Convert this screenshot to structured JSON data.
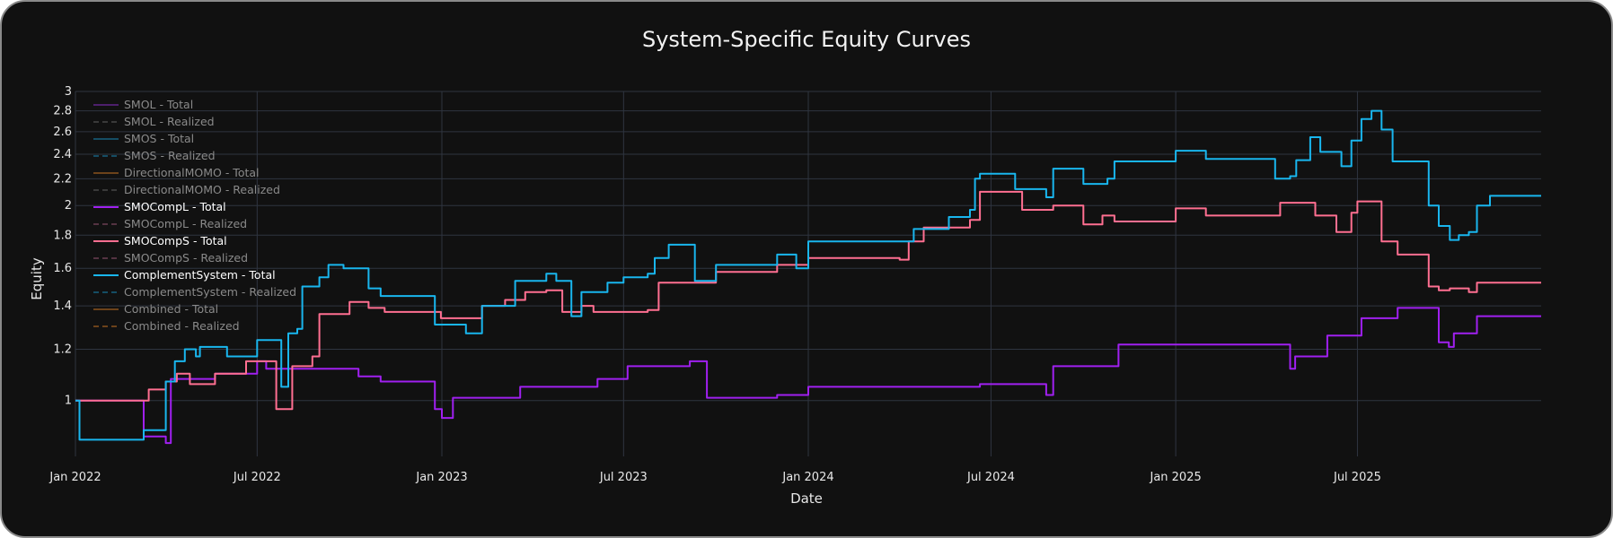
{
  "chart_data": {
    "type": "line",
    "title": "System-Specific Equity Curves",
    "xlabel": "Date",
    "ylabel": "Equity",
    "y_scale": "log",
    "ylim": [
      0.82,
      3.0
    ],
    "xlim": [
      "2022-01-01",
      "2025-12-31"
    ],
    "x_ticks": [
      {
        "date": "2022-01-01",
        "label": "Jan 2022"
      },
      {
        "date": "2022-07-01",
        "label": "Jul 2022"
      },
      {
        "date": "2023-01-01",
        "label": "Jan 2023"
      },
      {
        "date": "2023-07-01",
        "label": "Jul 2023"
      },
      {
        "date": "2024-01-01",
        "label": "Jan 2024"
      },
      {
        "date": "2024-07-01",
        "label": "Jul 2024"
      },
      {
        "date": "2025-01-01",
        "label": "Jan 2025"
      },
      {
        "date": "2025-07-01",
        "label": "Jul 2025"
      }
    ],
    "y_ticks": [
      1,
      1.2,
      1.4,
      1.6,
      1.8,
      2,
      2.2,
      2.4,
      2.6,
      2.8,
      3
    ],
    "grid": true,
    "legend_position": "top-left",
    "background_color": "#111111",
    "series": [
      {
        "name": "SMOL - Total",
        "color": "#7e2bb8",
        "dash": "solid",
        "visible": false,
        "points": []
      },
      {
        "name": "SMOL - Realized",
        "color": "#5a5a5a",
        "dash": "dash",
        "visible": false,
        "points": []
      },
      {
        "name": "SMOS - Total",
        "color": "#1a7fa8",
        "dash": "solid",
        "visible": false,
        "points": []
      },
      {
        "name": "SMOS - Realized",
        "color": "#1a7fa8",
        "dash": "dash",
        "visible": false,
        "points": []
      },
      {
        "name": "DirectionalMOMO - Total",
        "color": "#b86a22",
        "dash": "solid",
        "visible": false,
        "points": []
      },
      {
        "name": "DirectionalMOMO - Realized",
        "color": "#5a5a5a",
        "dash": "dash",
        "visible": false,
        "points": []
      },
      {
        "name": "SMOCompL - Total",
        "color": "#a020f0",
        "dash": "solid",
        "visible": true,
        "points": [
          [
            "2022-01-01",
            1.0
          ],
          [
            "2022-03-01",
            1.0
          ],
          [
            "2022-03-10",
            0.88
          ],
          [
            "2022-04-01",
            0.86
          ],
          [
            "2022-04-06",
            1.08
          ],
          [
            "2022-05-15",
            1.08
          ],
          [
            "2022-05-20",
            1.1
          ],
          [
            "2022-06-25",
            1.1
          ],
          [
            "2022-07-01",
            1.15
          ],
          [
            "2022-07-10",
            1.12
          ],
          [
            "2022-10-01",
            1.12
          ],
          [
            "2022-10-10",
            1.09
          ],
          [
            "2022-11-01",
            1.07
          ],
          [
            "2022-12-20",
            1.07
          ],
          [
            "2022-12-25",
            0.97
          ],
          [
            "2023-01-01",
            0.94
          ],
          [
            "2023-01-12",
            1.01
          ],
          [
            "2023-03-10",
            1.01
          ],
          [
            "2023-03-20",
            1.05
          ],
          [
            "2023-05-20",
            1.05
          ],
          [
            "2023-06-05",
            1.08
          ],
          [
            "2023-06-25",
            1.08
          ],
          [
            "2023-07-05",
            1.13
          ],
          [
            "2023-08-25",
            1.13
          ],
          [
            "2023-09-05",
            1.15
          ],
          [
            "2023-09-15",
            1.15
          ],
          [
            "2023-09-22",
            1.01
          ],
          [
            "2023-12-01",
            1.02
          ],
          [
            "2024-01-01",
            1.05
          ],
          [
            "2024-04-01",
            1.05
          ],
          [
            "2024-06-20",
            1.06
          ],
          [
            "2024-08-20",
            1.06
          ],
          [
            "2024-08-25",
            1.02
          ],
          [
            "2024-09-01",
            1.13
          ],
          [
            "2024-10-20",
            1.13
          ],
          [
            "2024-11-05",
            1.22
          ],
          [
            "2025-04-15",
            1.22
          ],
          [
            "2025-04-25",
            1.12
          ],
          [
            "2025-04-30",
            1.17
          ],
          [
            "2025-05-25",
            1.17
          ],
          [
            "2025-06-01",
            1.26
          ],
          [
            "2025-06-30",
            1.26
          ],
          [
            "2025-07-05",
            1.34
          ],
          [
            "2025-08-05",
            1.34
          ],
          [
            "2025-08-10",
            1.39
          ],
          [
            "2025-09-12",
            1.39
          ],
          [
            "2025-09-20",
            1.23
          ],
          [
            "2025-09-30",
            1.21
          ],
          [
            "2025-10-05",
            1.27
          ],
          [
            "2025-10-20",
            1.27
          ],
          [
            "2025-10-28",
            1.35
          ],
          [
            "2025-12-31",
            1.35
          ]
        ]
      },
      {
        "name": "SMOCompL - Realized",
        "color": "#8c4f6a",
        "dash": "dash",
        "visible": false,
        "points": []
      },
      {
        "name": "SMOCompS - Total",
        "color": "#ff6f91",
        "dash": "solid",
        "visible": true,
        "points": [
          [
            "2022-01-01",
            1.0
          ],
          [
            "2022-03-05",
            1.0
          ],
          [
            "2022-03-15",
            1.04
          ],
          [
            "2022-04-01",
            1.07
          ],
          [
            "2022-04-12",
            1.1
          ],
          [
            "2022-04-25",
            1.06
          ],
          [
            "2022-05-20",
            1.1
          ],
          [
            "2022-06-15",
            1.1
          ],
          [
            "2022-06-20",
            1.15
          ],
          [
            "2022-07-15",
            1.15
          ],
          [
            "2022-07-20",
            0.97
          ],
          [
            "2022-08-05",
            1.13
          ],
          [
            "2022-08-25",
            1.17
          ],
          [
            "2022-09-01",
            1.36
          ],
          [
            "2022-09-25",
            1.36
          ],
          [
            "2022-10-01",
            1.42
          ],
          [
            "2022-10-20",
            1.39
          ],
          [
            "2022-11-05",
            1.37
          ],
          [
            "2022-12-25",
            1.37
          ],
          [
            "2022-12-31",
            1.34
          ],
          [
            "2023-01-31",
            1.34
          ],
          [
            "2023-02-10",
            1.4
          ],
          [
            "2023-03-05",
            1.43
          ],
          [
            "2023-03-25",
            1.47
          ],
          [
            "2023-04-15",
            1.48
          ],
          [
            "2023-05-01",
            1.37
          ],
          [
            "2023-05-20",
            1.4
          ],
          [
            "2023-06-01",
            1.37
          ],
          [
            "2023-07-15",
            1.37
          ],
          [
            "2023-07-25",
            1.38
          ],
          [
            "2023-08-05",
            1.52
          ],
          [
            "2023-09-25",
            1.52
          ],
          [
            "2023-10-01",
            1.58
          ],
          [
            "2023-11-20",
            1.58
          ],
          [
            "2023-12-01",
            1.62
          ],
          [
            "2024-01-01",
            1.66
          ],
          [
            "2024-02-15",
            1.66
          ],
          [
            "2024-04-01",
            1.65
          ],
          [
            "2024-04-10",
            1.76
          ],
          [
            "2024-04-25",
            1.85
          ],
          [
            "2024-06-01",
            1.85
          ],
          [
            "2024-06-10",
            1.9
          ],
          [
            "2024-06-20",
            2.1
          ],
          [
            "2024-07-10",
            2.1
          ],
          [
            "2024-07-25",
            2.1
          ],
          [
            "2024-08-01",
            1.97
          ],
          [
            "2024-09-01",
            2.0
          ],
          [
            "2024-10-01",
            1.87
          ],
          [
            "2024-10-20",
            1.93
          ],
          [
            "2024-11-01",
            1.89
          ],
          [
            "2024-12-25",
            1.89
          ],
          [
            "2025-01-01",
            1.98
          ],
          [
            "2025-01-31",
            1.93
          ],
          [
            "2025-04-01",
            1.93
          ],
          [
            "2025-04-15",
            2.02
          ],
          [
            "2025-05-20",
            1.93
          ],
          [
            "2025-06-10",
            1.82
          ],
          [
            "2025-06-25",
            1.95
          ],
          [
            "2025-07-01",
            2.03
          ],
          [
            "2025-07-20",
            2.03
          ],
          [
            "2025-07-25",
            1.76
          ],
          [
            "2025-08-10",
            1.68
          ],
          [
            "2025-09-01",
            1.68
          ],
          [
            "2025-09-10",
            1.5
          ],
          [
            "2025-09-20",
            1.48
          ],
          [
            "2025-10-01",
            1.49
          ],
          [
            "2025-10-20",
            1.47
          ],
          [
            "2025-10-28",
            1.52
          ],
          [
            "2025-12-31",
            1.52
          ]
        ]
      },
      {
        "name": "SMOCompS - Realized",
        "color": "#8c4f6a",
        "dash": "dash",
        "visible": false,
        "points": []
      },
      {
        "name": "ComplementSystem - Total",
        "color": "#19b6ee",
        "dash": "solid",
        "visible": true,
        "points": [
          [
            "2022-01-01",
            1.0
          ],
          [
            "2022-01-05",
            0.87
          ],
          [
            "2022-03-01",
            0.87
          ],
          [
            "2022-03-10",
            0.9
          ],
          [
            "2022-03-25",
            0.9
          ],
          [
            "2022-04-01",
            1.07
          ],
          [
            "2022-04-10",
            1.15
          ],
          [
            "2022-04-20",
            1.2
          ],
          [
            "2022-05-01",
            1.17
          ],
          [
            "2022-05-05",
            1.21
          ],
          [
            "2022-05-25",
            1.21
          ],
          [
            "2022-06-01",
            1.17
          ],
          [
            "2022-06-25",
            1.17
          ],
          [
            "2022-07-01",
            1.24
          ],
          [
            "2022-07-20",
            1.24
          ],
          [
            "2022-07-25",
            1.05
          ],
          [
            "2022-08-01",
            1.27
          ],
          [
            "2022-08-10",
            1.29
          ],
          [
            "2022-08-15",
            1.5
          ],
          [
            "2022-09-01",
            1.55
          ],
          [
            "2022-09-10",
            1.62
          ],
          [
            "2022-09-25",
            1.6
          ],
          [
            "2022-10-20",
            1.49
          ],
          [
            "2022-11-01",
            1.45
          ],
          [
            "2022-12-20",
            1.45
          ],
          [
            "2022-12-25",
            1.31
          ],
          [
            "2023-01-20",
            1.31
          ],
          [
            "2023-01-25",
            1.27
          ],
          [
            "2023-02-10",
            1.4
          ],
          [
            "2023-03-15",
            1.53
          ],
          [
            "2023-04-15",
            1.57
          ],
          [
            "2023-04-25",
            1.53
          ],
          [
            "2023-05-10",
            1.35
          ],
          [
            "2023-05-20",
            1.47
          ],
          [
            "2023-06-10",
            1.47
          ],
          [
            "2023-06-15",
            1.52
          ],
          [
            "2023-07-01",
            1.55
          ],
          [
            "2023-07-25",
            1.57
          ],
          [
            "2023-08-01",
            1.66
          ],
          [
            "2023-08-15",
            1.74
          ],
          [
            "2023-09-01",
            1.74
          ],
          [
            "2023-09-10",
            1.53
          ],
          [
            "2023-09-25",
            1.53
          ],
          [
            "2023-10-01",
            1.62
          ],
          [
            "2023-11-20",
            1.62
          ],
          [
            "2023-12-01",
            1.68
          ],
          [
            "2023-12-20",
            1.6
          ],
          [
            "2024-01-01",
            1.76
          ],
          [
            "2024-04-01",
            1.76
          ],
          [
            "2024-04-15",
            1.84
          ],
          [
            "2024-05-20",
            1.92
          ],
          [
            "2024-06-10",
            1.97
          ],
          [
            "2024-06-15",
            2.2
          ],
          [
            "2024-06-20",
            2.24
          ],
          [
            "2024-07-20",
            2.24
          ],
          [
            "2024-07-25",
            2.12
          ],
          [
            "2024-08-20",
            2.12
          ],
          [
            "2024-08-25",
            2.06
          ],
          [
            "2024-09-01",
            2.28
          ],
          [
            "2024-10-01",
            2.16
          ],
          [
            "2024-10-25",
            2.2
          ],
          [
            "2024-11-01",
            2.34
          ],
          [
            "2024-12-20",
            2.34
          ],
          [
            "2025-01-01",
            2.43
          ],
          [
            "2025-01-31",
            2.36
          ],
          [
            "2025-04-01",
            2.36
          ],
          [
            "2025-04-10",
            2.2
          ],
          [
            "2025-04-25",
            2.22
          ],
          [
            "2025-05-01",
            2.35
          ],
          [
            "2025-05-15",
            2.55
          ],
          [
            "2025-05-25",
            2.42
          ],
          [
            "2025-06-15",
            2.3
          ],
          [
            "2025-06-25",
            2.52
          ],
          [
            "2025-07-05",
            2.72
          ],
          [
            "2025-07-15",
            2.8
          ],
          [
            "2025-07-25",
            2.62
          ],
          [
            "2025-08-05",
            2.34
          ],
          [
            "2025-09-01",
            2.34
          ],
          [
            "2025-09-10",
            2.0
          ],
          [
            "2025-09-20",
            1.86
          ],
          [
            "2025-10-01",
            1.77
          ],
          [
            "2025-10-10",
            1.8
          ],
          [
            "2025-10-20",
            1.82
          ],
          [
            "2025-10-28",
            2.0
          ],
          [
            "2025-11-10",
            2.07
          ],
          [
            "2025-12-31",
            2.07
          ]
        ]
      },
      {
        "name": "ComplementSystem - Realized",
        "color": "#1a7fa8",
        "dash": "dash",
        "visible": false,
        "points": []
      },
      {
        "name": "Combined - Total",
        "color": "#b86a22",
        "dash": "solid",
        "visible": false,
        "points": []
      },
      {
        "name": "Combined - Realized",
        "color": "#b86a22",
        "dash": "dash",
        "visible": false,
        "points": []
      }
    ]
  }
}
